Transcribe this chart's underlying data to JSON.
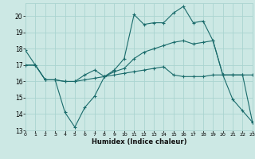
{
  "xlabel": "Humidex (Indice chaleur)",
  "background_color": "#cce8e4",
  "grid_color": "#aad4d0",
  "line_color": "#1a6b6b",
  "xlim": [
    0,
    23
  ],
  "ylim": [
    13,
    20.8
  ],
  "xticks": [
    0,
    1,
    2,
    3,
    4,
    5,
    6,
    7,
    8,
    9,
    10,
    11,
    12,
    13,
    14,
    15,
    16,
    17,
    18,
    19,
    20,
    21,
    22,
    23
  ],
  "yticks": [
    13,
    14,
    15,
    16,
    17,
    18,
    19,
    20
  ],
  "line1_x": [
    0,
    1,
    2,
    3,
    4,
    5,
    6,
    7,
    8,
    9,
    10,
    11,
    12,
    13,
    14,
    15,
    16,
    17,
    18,
    19,
    20,
    21,
    22,
    23
  ],
  "line1_y": [
    17.9,
    17.0,
    16.1,
    16.1,
    14.1,
    13.2,
    14.4,
    15.1,
    16.3,
    16.7,
    17.4,
    20.1,
    19.5,
    19.6,
    19.6,
    20.2,
    20.6,
    19.6,
    19.7,
    18.5,
    16.4,
    14.9,
    14.2,
    13.5
  ],
  "line2_x": [
    0,
    1,
    2,
    3,
    4,
    5,
    6,
    7,
    8,
    9,
    10,
    11,
    12,
    13,
    14,
    15,
    16,
    17,
    18,
    19,
    20,
    21,
    22,
    23
  ],
  "line2_y": [
    17.0,
    17.0,
    16.1,
    16.1,
    16.0,
    16.0,
    16.4,
    16.7,
    16.3,
    16.6,
    16.8,
    17.4,
    17.8,
    18.0,
    18.2,
    18.4,
    18.5,
    18.3,
    18.4,
    18.5,
    16.4,
    16.4,
    16.4,
    16.4
  ],
  "line3_x": [
    0,
    1,
    2,
    3,
    4,
    5,
    6,
    7,
    8,
    9,
    10,
    11,
    12,
    13,
    14,
    15,
    16,
    17,
    18,
    19,
    20,
    21,
    22,
    23
  ],
  "line3_y": [
    17.0,
    17.0,
    16.1,
    16.1,
    16.0,
    16.0,
    16.1,
    16.2,
    16.3,
    16.4,
    16.5,
    16.6,
    16.7,
    16.8,
    16.9,
    16.4,
    16.3,
    16.3,
    16.3,
    16.4,
    16.4,
    16.4,
    16.4,
    13.5
  ]
}
